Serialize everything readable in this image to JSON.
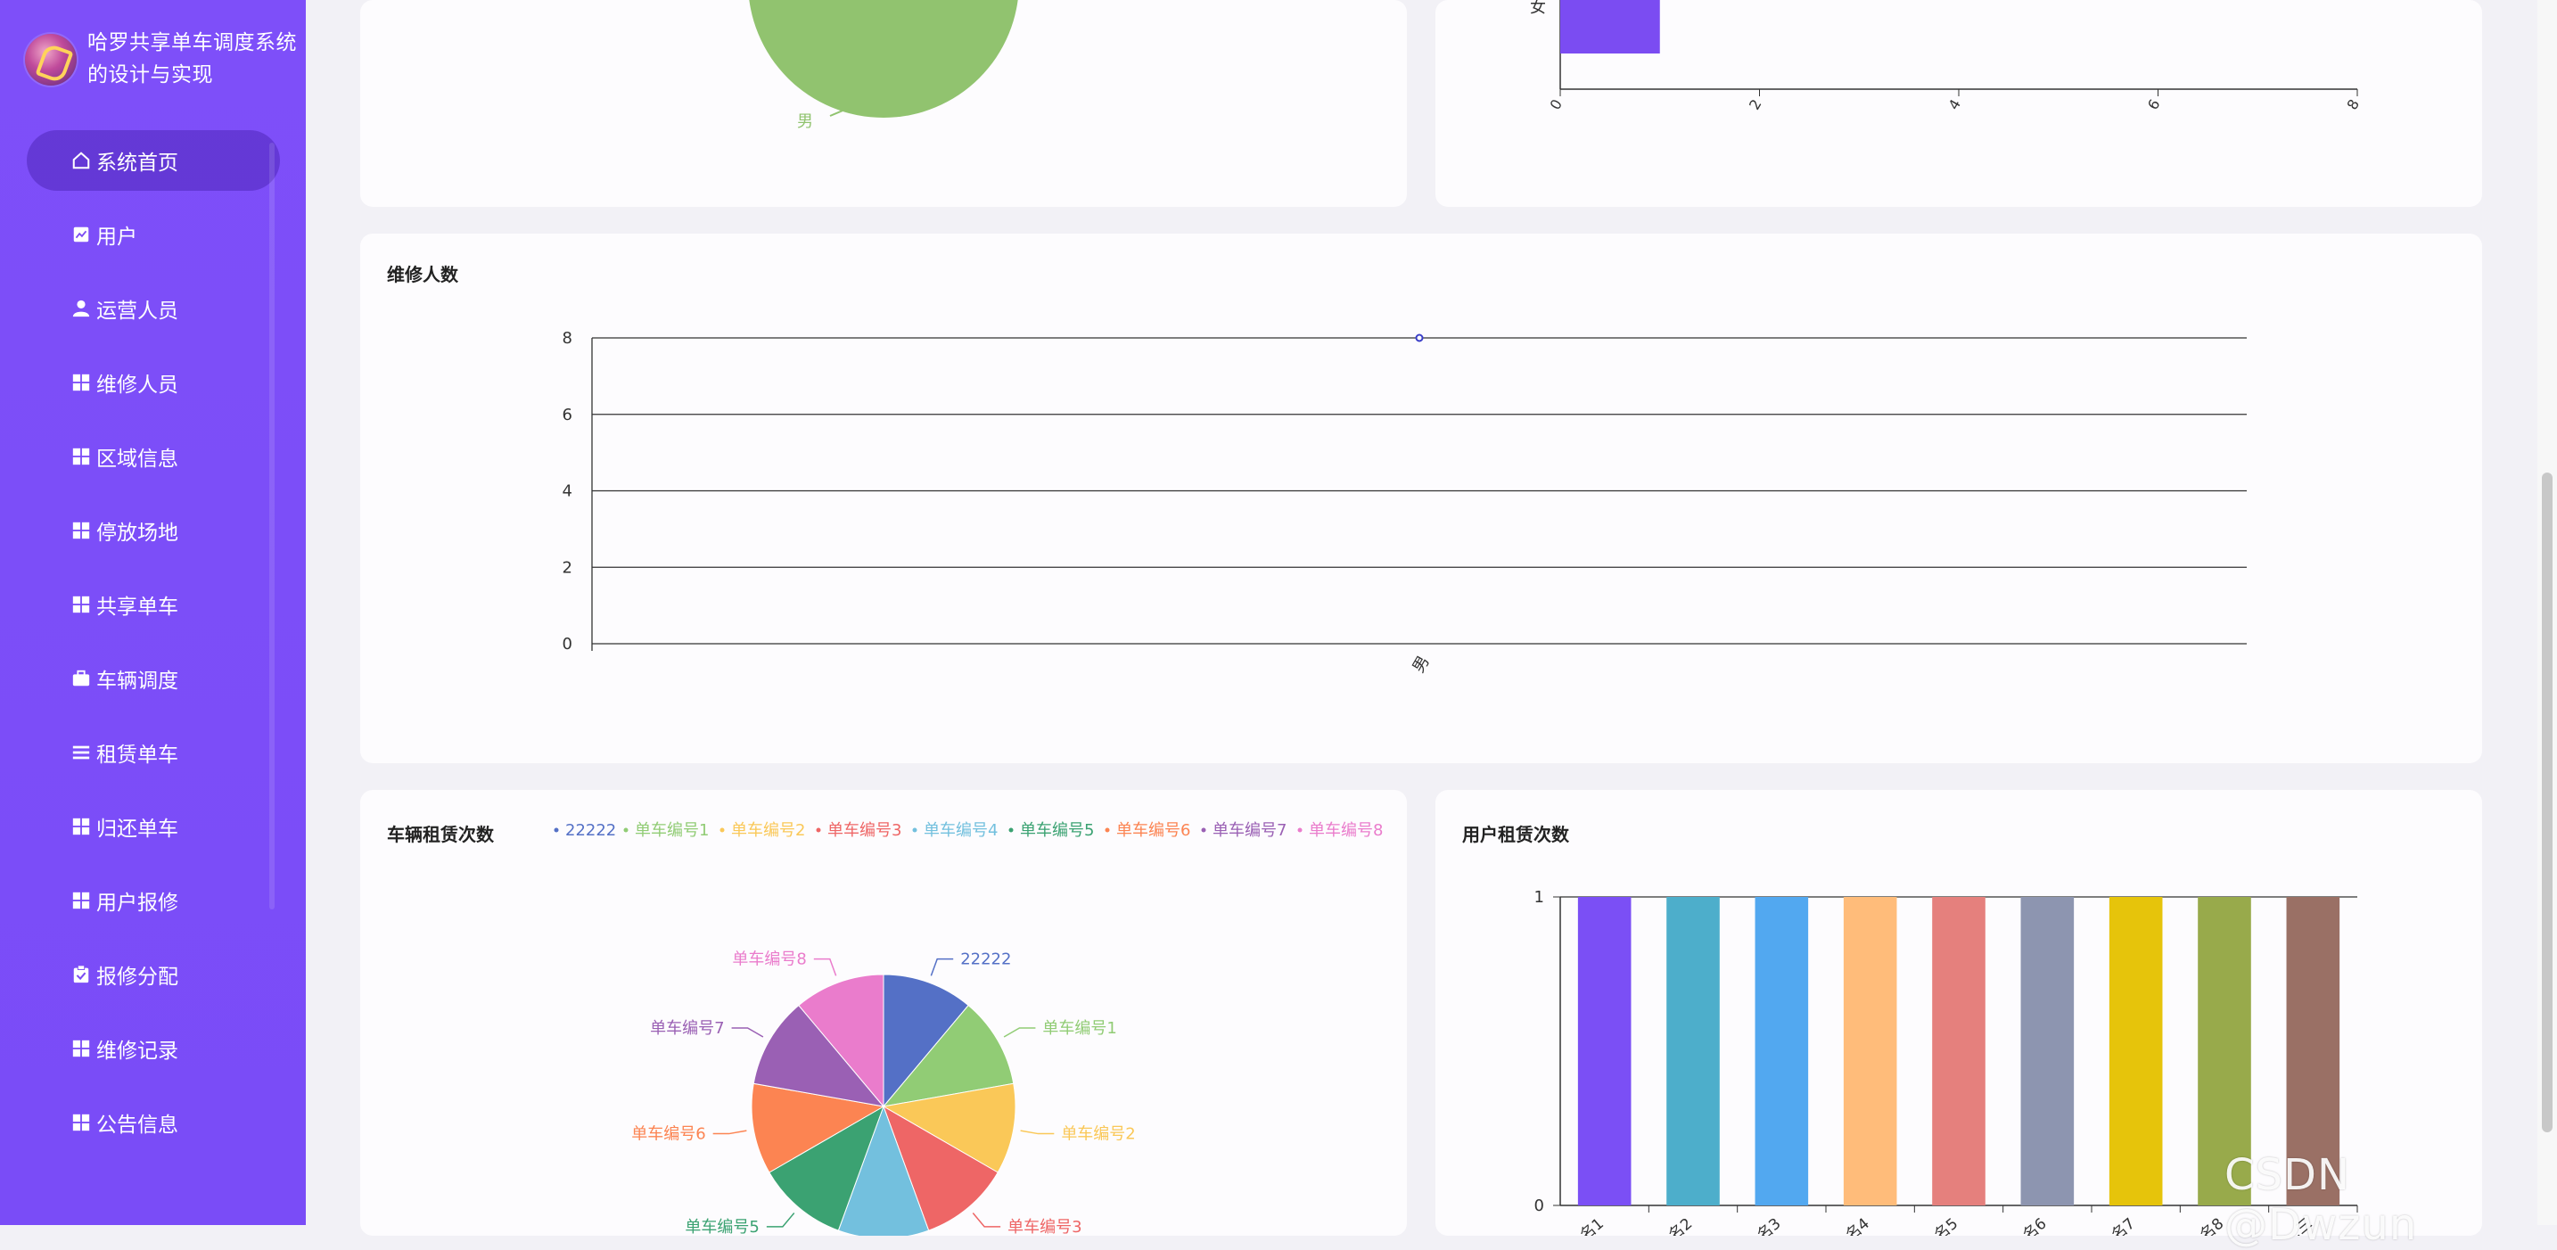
{
  "app": {
    "title": "哈罗共享单车调度系统的设计与实现"
  },
  "sidebar": {
    "items": [
      {
        "label": "系统首页",
        "icon": "home-icon",
        "active": true
      },
      {
        "label": "用户",
        "icon": "chart-icon"
      },
      {
        "label": "运营人员",
        "icon": "person-icon"
      },
      {
        "label": "维修人员",
        "icon": "grid-icon"
      },
      {
        "label": "区域信息",
        "icon": "grid-icon"
      },
      {
        "label": "停放场地",
        "icon": "grid-icon"
      },
      {
        "label": "共享单车",
        "icon": "grid-icon"
      },
      {
        "label": "车辆调度",
        "icon": "briefcase-icon"
      },
      {
        "label": "租赁单车",
        "icon": "list-icon"
      },
      {
        "label": "归还单车",
        "icon": "grid-icon"
      },
      {
        "label": "用户报修",
        "icon": "grid-icon"
      },
      {
        "label": "报修分配",
        "icon": "clipboard-icon"
      },
      {
        "label": "维修记录",
        "icon": "grid-icon"
      },
      {
        "label": "公告信息",
        "icon": "grid-icon"
      }
    ]
  },
  "cards": {
    "top_left": {
      "slice_label": "男"
    },
    "top_right": {
      "y_label": "女"
    },
    "repair": {
      "title": "维修人数"
    },
    "vehicle": {
      "title": "车辆租赁次数"
    },
    "user": {
      "title": "用户租赁次数"
    }
  },
  "chart_data": [
    {
      "type": "pie",
      "title": "",
      "slices": [
        {
          "label": "男",
          "value": 1,
          "color": "#91c36f"
        }
      ],
      "note": "top portion scrolled out of view"
    },
    {
      "type": "bar",
      "orientation": "horizontal",
      "categories": [
        "女"
      ],
      "values": [
        1
      ],
      "xticks": [
        0,
        2,
        4,
        6,
        8
      ],
      "xlim": [
        0,
        8
      ],
      "color": "#7b4cf2"
    },
    {
      "type": "line",
      "title": "维修人数",
      "categories": [
        "男"
      ],
      "series": [
        {
          "values": [
            8
          ]
        }
      ],
      "ylim": [
        0,
        8
      ],
      "yticks": [
        0,
        2,
        4,
        6,
        8
      ],
      "grid": true,
      "color": "#3a3ec8"
    },
    {
      "type": "pie",
      "title": "车辆租赁次数",
      "legend": "top",
      "slices": [
        {
          "label": "22222",
          "value": 1,
          "color": "#5470c6"
        },
        {
          "label": "单车编号1",
          "value": 1,
          "color": "#91cc75"
        },
        {
          "label": "单车编号2",
          "value": 1,
          "color": "#fac858"
        },
        {
          "label": "单车编号3",
          "value": 1,
          "color": "#ee6666"
        },
        {
          "label": "单车编号4",
          "value": 1,
          "color": "#73c0de"
        },
        {
          "label": "单车编号5",
          "value": 1,
          "color": "#3ba272"
        },
        {
          "label": "单车编号6",
          "value": 1,
          "color": "#fc8452"
        },
        {
          "label": "单车编号7",
          "value": 1,
          "color": "#9a60b4"
        },
        {
          "label": "单车编号8",
          "value": 1,
          "color": "#ea7ccc"
        }
      ]
    },
    {
      "type": "bar",
      "title": "用户租赁次数",
      "categories": [
        "…名1",
        "…名2",
        "…名3",
        "…名4",
        "…名5",
        "…名6",
        "…名7",
        "…名8",
        "…三"
      ],
      "values": [
        1,
        1,
        1,
        1,
        1,
        1,
        1,
        1,
        1
      ],
      "ylim": [
        0,
        1
      ],
      "yticks": [
        0,
        1
      ],
      "colors": [
        "#7b4ff5",
        "#4daecb",
        "#52a8f0",
        "#ffbc7a",
        "#e5807d",
        "#8d95b0",
        "#e6c40b",
        "#98aa4b",
        "#9a7065"
      ]
    }
  ],
  "watermark": "CSDN @Dwzun"
}
